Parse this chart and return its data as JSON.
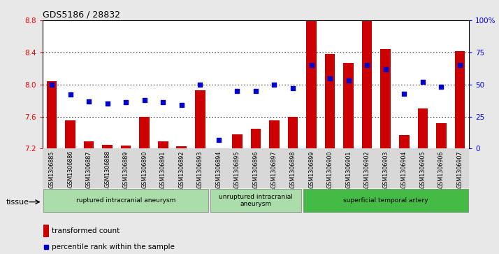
{
  "title": "GDS5186 / 28832",
  "samples": [
    "GSM1306885",
    "GSM1306886",
    "GSM1306887",
    "GSM1306888",
    "GSM1306889",
    "GSM1306890",
    "GSM1306891",
    "GSM1306892",
    "GSM1306893",
    "GSM1306894",
    "GSM1306895",
    "GSM1306896",
    "GSM1306897",
    "GSM1306898",
    "GSM1306899",
    "GSM1306900",
    "GSM1306901",
    "GSM1306902",
    "GSM1306903",
    "GSM1306904",
    "GSM1306905",
    "GSM1306906",
    "GSM1306907"
  ],
  "bar_values": [
    8.04,
    7.55,
    7.29,
    7.25,
    7.24,
    7.6,
    7.29,
    7.23,
    7.93,
    7.17,
    7.38,
    7.45,
    7.55,
    7.6,
    8.8,
    8.38,
    8.27,
    8.8,
    8.44,
    7.37,
    7.7,
    7.52,
    8.42
  ],
  "percentile_values": [
    50,
    42,
    37,
    35,
    36,
    38,
    36,
    34,
    50,
    7,
    45,
    45,
    50,
    47,
    65,
    55,
    53,
    65,
    62,
    43,
    52,
    48,
    65
  ],
  "ylim_left": [
    7.2,
    8.8
  ],
  "ylim_right": [
    0,
    100
  ],
  "yticks_left": [
    7.2,
    7.6,
    8.0,
    8.4,
    8.8
  ],
  "yticks_right": [
    0,
    25,
    50,
    75,
    100
  ],
  "ytick_labels_right": [
    "0",
    "25",
    "50",
    "75",
    "100%"
  ],
  "bar_color": "#cc0000",
  "dot_color": "#0000cc",
  "background_color": "#e8e8e8",
  "plot_bg_color": "#ffffff",
  "tissue_groups": [
    {
      "label": "ruptured intracranial aneurysm",
      "start": 0,
      "end": 8,
      "color": "#aaddaa"
    },
    {
      "label": "unruptured intracranial\naneurysm",
      "start": 9,
      "end": 13,
      "color": "#aaddaa"
    },
    {
      "label": "superficial temporal artery",
      "start": 14,
      "end": 22,
      "color": "#44bb44"
    }
  ],
  "tissue_label": "tissue",
  "legend_bar_label": "transformed count",
  "legend_dot_label": "percentile rank within the sample"
}
